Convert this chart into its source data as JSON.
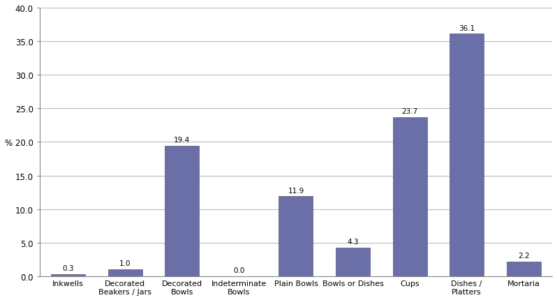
{
  "categories": [
    "Inkwells",
    "Decorated\nBeakers / Jars",
    "Decorated\nBowls",
    "Indeterminate\nBowls",
    "Plain Bowls",
    "Bowls or Dishes",
    "Cups",
    "Dishes /\nPlatters",
    "Mortaria"
  ],
  "values": [
    0.3,
    1.0,
    19.4,
    0.0,
    11.9,
    4.3,
    23.7,
    36.1,
    2.2
  ],
  "bar_color": "#6b6fa8",
  "ylim": [
    0,
    40
  ],
  "yticks": [
    0.0,
    5.0,
    10.0,
    15.0,
    20.0,
    25.0,
    30.0,
    35.0,
    40.0
  ],
  "ytick_labels": [
    "0.0",
    "5.0",
    "10.0",
    "15.0",
    "% 20.0",
    "25.0",
    "30.0",
    "35.0",
    "40.0"
  ],
  "background_color": "#ffffff",
  "grid_color": "#bbbbbb",
  "label_fontsize": 8.0,
  "value_fontsize": 7.5
}
